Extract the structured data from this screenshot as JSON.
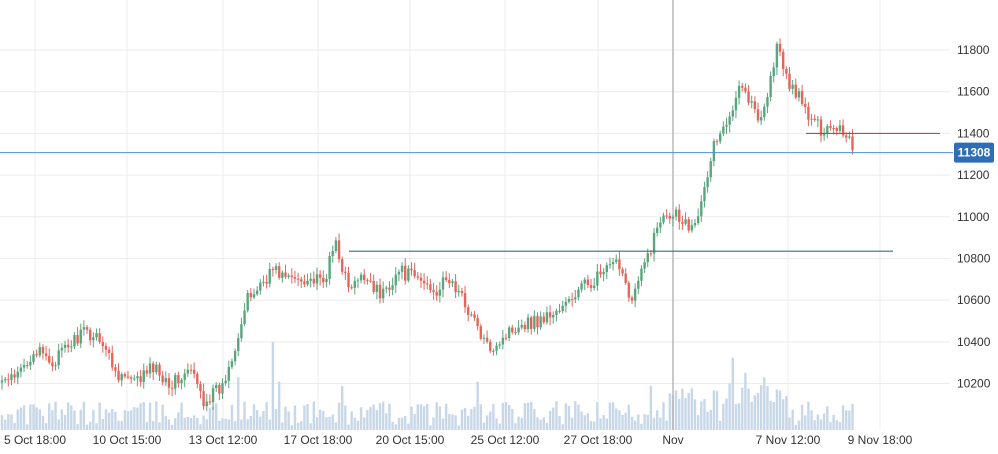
{
  "colors": {
    "up": "#5aa57d",
    "down": "#e4655a",
    "volume": "#c8d7e8",
    "grid": "#ececec",
    "price_line": "#4e8ed8",
    "level_line": "#3a6a95",
    "order_line": "#b54a4a",
    "crosshair": "#b8b8b8",
    "axis_text": "#333333"
  },
  "chart_data": {
    "type": "candlestick",
    "title": "",
    "xlabel": "",
    "ylabel": "",
    "ylim": [
      10030,
      12040
    ],
    "grid": true,
    "y_axis_side": "right",
    "y_ticks": [
      10200,
      10400,
      10600,
      10800,
      11000,
      11200,
      11400,
      11600,
      11800
    ],
    "x_tick_labels": [
      "5 Oct 18:00",
      "10 Oct 15:00",
      "13 Oct 12:00",
      "17 Oct 18:00",
      "20 Oct 15:00",
      "25 Oct 12:00",
      "27 Oct 18:00",
      "Nov",
      "7 Nov 12:00",
      "9 Nov 18:00"
    ],
    "current_price": 11308,
    "horizontal_levels": [
      10835,
      11400
    ],
    "anchors": [
      {
        "i": 0,
        "p": 10215
      },
      {
        "i": 4,
        "p": 10215
      },
      {
        "i": 10,
        "p": 10360
      },
      {
        "i": 16,
        "p": 10300
      },
      {
        "i": 25,
        "p": 10440
      },
      {
        "i": 31,
        "p": 10430
      },
      {
        "i": 36,
        "p": 10260
      },
      {
        "i": 42,
        "p": 10200
      },
      {
        "i": 48,
        "p": 10280
      },
      {
        "i": 54,
        "p": 10200
      },
      {
        "i": 60,
        "p": 10260
      },
      {
        "i": 64,
        "p": 10120
      },
      {
        "i": 70,
        "p": 10180
      },
      {
        "i": 78,
        "p": 10600
      },
      {
        "i": 86,
        "p": 10750
      },
      {
        "i": 91,
        "p": 10700
      },
      {
        "i": 96,
        "p": 10710
      },
      {
        "i": 102,
        "p": 10680
      },
      {
        "i": 106,
        "p": 10880
      },
      {
        "i": 110,
        "p": 10650
      },
      {
        "i": 116,
        "p": 10720
      },
      {
        "i": 120,
        "p": 10620
      },
      {
        "i": 126,
        "p": 10740
      },
      {
        "i": 132,
        "p": 10700
      },
      {
        "i": 138,
        "p": 10650
      },
      {
        "i": 142,
        "p": 10700
      },
      {
        "i": 148,
        "p": 10560
      },
      {
        "i": 154,
        "p": 10370
      },
      {
        "i": 158,
        "p": 10410
      },
      {
        "i": 164,
        "p": 10490
      },
      {
        "i": 170,
        "p": 10500
      },
      {
        "i": 178,
        "p": 10560
      },
      {
        "i": 184,
        "p": 10660
      },
      {
        "i": 190,
        "p": 10720
      },
      {
        "i": 196,
        "p": 10780
      },
      {
        "i": 200,
        "p": 10600
      },
      {
        "i": 204,
        "p": 10770
      },
      {
        "i": 210,
        "p": 11030
      },
      {
        "i": 214,
        "p": 11020
      },
      {
        "i": 218,
        "p": 10960
      },
      {
        "i": 222,
        "p": 11050
      },
      {
        "i": 226,
        "p": 11350
      },
      {
        "i": 230,
        "p": 11430
      },
      {
        "i": 234,
        "p": 11660
      },
      {
        "i": 237,
        "p": 11570
      },
      {
        "i": 240,
        "p": 11470
      },
      {
        "i": 243,
        "p": 11580
      },
      {
        "i": 246,
        "p": 11820
      },
      {
        "i": 249,
        "p": 11660
      },
      {
        "i": 252,
        "p": 11600
      },
      {
        "i": 256,
        "p": 11480
      },
      {
        "i": 260,
        "p": 11420
      },
      {
        "i": 263,
        "p": 11440
      },
      {
        "i": 266,
        "p": 11430
      },
      {
        "i": 269,
        "p": 11380
      },
      {
        "i": 270,
        "p": 11320
      }
    ],
    "volume_spikes": [
      {
        "i": 75,
        "v": 0.6
      },
      {
        "i": 86,
        "v": 1.0
      },
      {
        "i": 88,
        "v": 0.55
      },
      {
        "i": 108,
        "v": 0.5
      },
      {
        "i": 151,
        "v": 0.55
      },
      {
        "i": 206,
        "v": 0.5
      },
      {
        "i": 232,
        "v": 0.82
      },
      {
        "i": 236,
        "v": 0.65
      },
      {
        "i": 242,
        "v": 0.6
      },
      {
        "i": 247,
        "v": 0.45
      }
    ]
  }
}
